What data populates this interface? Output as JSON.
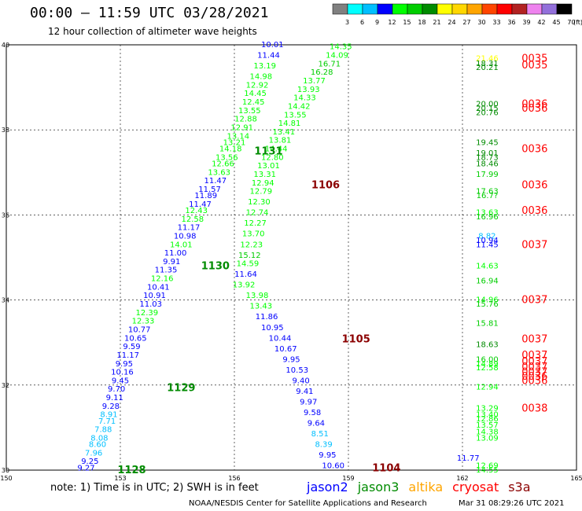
{
  "title": "00:00 – 11:59 UTC 03/28/2021",
  "subtitle": "12 hour collection of altimeter wave heights",
  "note": "note: 1) Time is in UTC; 2) SWH is in feet",
  "credit": "NOAA/NESDIS Center for Satellite Applications and Research",
  "timestamp": "Mar 31 08:29:26 UTC 2021",
  "color_scale": {
    "unit_label": "(ft)",
    "levels": [
      "3",
      "6",
      "9",
      "12",
      "15",
      "18",
      "21",
      "24",
      "27",
      "30",
      "33",
      "36",
      "39",
      "42",
      "45",
      "70"
    ],
    "colors": [
      "#808080",
      "#00ffff",
      "#00bfff",
      "#0000ff",
      "#00ff00",
      "#00cd00",
      "#008b00",
      "#ffff00",
      "#ffd700",
      "#ffa500",
      "#ff4500",
      "#ff0000",
      "#b22222",
      "#ee82ee",
      "#9370db",
      "#000000"
    ]
  },
  "satellite_legend": [
    {
      "name": "jason2",
      "color": "#0000ff"
    },
    {
      "name": "jason3",
      "color": "#008b00"
    },
    {
      "name": "altika",
      "color": "#ffa500"
    },
    {
      "name": "cryosat",
      "color": "#ff0000"
    },
    {
      "name": "s3a",
      "color": "#8b0000"
    }
  ],
  "chart_data": {
    "type": "scatter",
    "title": "00:00 – 11:59 UTC 03/28/2021",
    "subtitle": "12 hour collection of altimeter wave heights",
    "xlim": [
      150,
      165
    ],
    "ylim": [
      30,
      40
    ],
    "x_ticks": [
      "150",
      "153",
      "156",
      "159",
      "162",
      "165"
    ],
    "y_ticks": [
      "30",
      "32",
      "34",
      "36",
      "38",
      "40"
    ],
    "grid": true,
    "tracks": [
      {
        "track": 1128,
        "satellite": "jason3",
        "label_at": [
          153.3,
          30.0
        ],
        "points": [
          [
            152.1,
            30.05,
            "9.27"
          ],
          [
            152.2,
            30.2,
            "9.25"
          ],
          [
            152.3,
            30.4,
            "7.96"
          ],
          [
            152.4,
            30.6,
            "8.60"
          ],
          [
            152.45,
            30.75,
            "8.08"
          ],
          [
            152.55,
            30.95,
            "7.88"
          ],
          [
            152.65,
            31.15,
            "7.71"
          ],
          [
            152.7,
            31.3,
            "8.91"
          ],
          [
            152.75,
            31.5,
            "9.28"
          ],
          [
            152.85,
            31.7,
            "9.11"
          ],
          [
            152.9,
            31.9,
            "9.70"
          ]
        ]
      },
      {
        "track": 1129,
        "satellite": "jason3",
        "label_at": [
          154.6,
          31.93
        ],
        "points": [
          [
            153.0,
            32.1,
            "9.45"
          ],
          [
            153.05,
            32.3,
            "10.16"
          ],
          [
            153.1,
            32.5,
            "9.95"
          ],
          [
            153.2,
            32.7,
            "11.17"
          ],
          [
            153.3,
            32.9,
            "9.59"
          ],
          [
            153.4,
            33.1,
            "10.65"
          ],
          [
            153.5,
            33.3,
            "10.77"
          ],
          [
            153.6,
            33.5,
            "12.33"
          ],
          [
            153.7,
            33.7,
            "12.39"
          ],
          [
            153.8,
            33.9,
            "11.03"
          ],
          [
            153.9,
            34.1,
            "10.91"
          ],
          [
            154.0,
            34.3,
            "10.41"
          ],
          [
            154.1,
            34.5,
            "12.16"
          ],
          [
            154.2,
            34.7,
            "11.35"
          ],
          [
            154.35,
            34.9,
            "9.91"
          ],
          [
            154.45,
            35.1,
            "11.00"
          ],
          [
            154.6,
            35.3,
            "14.01"
          ],
          [
            154.7,
            35.5,
            "10.98"
          ],
          [
            154.8,
            35.7,
            "11.17"
          ],
          [
            154.9,
            35.9,
            "12.58"
          ],
          [
            155.0,
            36.1,
            "12.43"
          ]
        ]
      },
      {
        "track": 1130,
        "satellite": "jason3",
        "label_at": [
          155.5,
          34.8
        ],
        "points": [
          [
            155.1,
            36.25,
            "11.47"
          ],
          [
            155.25,
            36.45,
            "11.89"
          ],
          [
            155.35,
            36.6,
            "11.57"
          ],
          [
            155.5,
            36.8,
            "11.47"
          ],
          [
            155.6,
            37.0,
            "13.63"
          ],
          [
            155.7,
            37.2,
            "12.66"
          ],
          [
            155.8,
            37.35,
            "13.56"
          ],
          [
            155.9,
            37.55,
            "14.18"
          ],
          [
            156.0,
            37.7,
            "13.21"
          ],
          [
            156.1,
            37.85,
            "13.14"
          ],
          [
            156.2,
            38.05,
            "12.91"
          ],
          [
            156.3,
            38.25,
            "12.88"
          ],
          [
            156.4,
            38.45,
            "13.55"
          ],
          [
            156.5,
            38.65,
            "12.45"
          ],
          [
            156.55,
            38.85,
            "14.45"
          ],
          [
            156.6,
            39.05,
            "12.92"
          ],
          [
            156.7,
            39.25,
            "14.98"
          ],
          [
            156.8,
            39.5,
            "13.19"
          ],
          [
            156.9,
            39.75,
            "11.44"
          ],
          [
            157.0,
            40.0,
            "10.01"
          ]
        ]
      },
      {
        "track": 1131,
        "satellite": "jason3",
        "label_at": [
          156.9,
          37.5
        ],
        "points": [
          [
            158.8,
            39.95,
            "14.35"
          ],
          [
            158.7,
            39.75,
            "14.09"
          ],
          [
            158.5,
            39.55,
            "16.71"
          ],
          [
            158.3,
            39.35,
            "16.28"
          ],
          [
            158.1,
            39.15,
            "13.77"
          ],
          [
            157.95,
            38.95,
            "13.93"
          ],
          [
            157.85,
            38.75,
            "14.33"
          ],
          [
            157.7,
            38.55,
            "14.42"
          ],
          [
            157.6,
            38.35,
            "13.55"
          ],
          [
            157.45,
            38.15,
            "14.81"
          ],
          [
            157.3,
            37.95,
            "13.41"
          ],
          [
            157.2,
            37.75,
            "13.81"
          ],
          [
            157.1,
            37.55,
            "14.44"
          ],
          [
            157.0,
            37.35,
            "12.80"
          ],
          [
            156.9,
            37.15,
            "13.01"
          ],
          [
            156.8,
            36.95,
            "13.31"
          ],
          [
            156.75,
            36.75,
            "12.94"
          ],
          [
            156.7,
            36.55,
            "12.79"
          ],
          [
            156.65,
            36.3,
            "12.30"
          ],
          [
            156.6,
            36.05,
            "12.74"
          ],
          [
            156.55,
            35.8,
            "12.27"
          ],
          [
            156.5,
            35.55,
            "13.70"
          ],
          [
            156.45,
            35.3,
            "12.23"
          ],
          [
            156.4,
            35.05,
            "15.12"
          ],
          [
            156.35,
            34.85,
            "14.59"
          ],
          [
            156.3,
            34.6,
            "11.64"
          ],
          [
            156.25,
            34.35,
            "13.92"
          ]
        ]
      },
      {
        "track": 1105,
        "satellite": "s3a",
        "label_at": [
          159.2,
          33.08
        ],
        "points": [
          [
            156.6,
            34.1,
            "13.98"
          ],
          [
            156.7,
            33.85,
            "13.43"
          ],
          [
            156.85,
            33.6,
            "11.86"
          ],
          [
            157.0,
            33.35,
            "10.95"
          ],
          [
            157.2,
            33.1,
            "10.44"
          ],
          [
            157.35,
            32.85,
            "10.67"
          ],
          [
            157.5,
            32.6,
            "9.95"
          ],
          [
            157.65,
            32.35,
            "10.53"
          ],
          [
            157.75,
            32.1,
            "9.40"
          ],
          [
            157.85,
            31.85,
            "9.41"
          ],
          [
            157.95,
            31.6,
            "9.97"
          ],
          [
            158.05,
            31.35,
            "9.58"
          ],
          [
            158.15,
            31.1,
            "9.64"
          ],
          [
            158.25,
            30.85,
            "8.51"
          ],
          [
            158.35,
            30.6,
            "8.39"
          ],
          [
            158.45,
            30.35,
            "9.95"
          ],
          [
            158.6,
            30.1,
            "10.60"
          ]
        ]
      },
      {
        "track": 1106,
        "satellite": "s3a",
        "label_at": [
          158.4,
          36.7
        ],
        "points": []
      },
      {
        "track": 1104,
        "satellite": "s3a",
        "label_at": [
          160.0,
          30.05
        ],
        "points": [
          [
            162.15,
            30.28,
            "11.77"
          ]
        ]
      },
      {
        "track": 37,
        "satellite": "cryosat",
        "label_at": [
          163.3,
          32.0
        ],
        "points": [
          [
            162.65,
            39.68,
            "21.46"
          ],
          [
            162.65,
            39.56,
            "18.31"
          ],
          [
            162.65,
            39.46,
            "20.21"
          ],
          [
            162.65,
            38.6,
            "20.00"
          ],
          [
            162.65,
            38.5,
            "20.15"
          ],
          [
            162.65,
            38.4,
            "20.76"
          ],
          [
            162.65,
            37.7,
            "19.45"
          ],
          [
            162.65,
            37.45,
            "19.01"
          ],
          [
            162.65,
            37.35,
            "18.73"
          ],
          [
            162.65,
            37.2,
            "18.46"
          ],
          [
            162.65,
            36.95,
            "17.99"
          ],
          [
            162.65,
            36.55,
            "17.63"
          ],
          [
            162.65,
            36.45,
            "16.7?"
          ],
          [
            162.65,
            36.05,
            "13.63"
          ],
          [
            162.65,
            35.95,
            "16.96"
          ],
          [
            162.65,
            35.5,
            "8.82"
          ],
          [
            162.65,
            35.4,
            "10.94"
          ],
          [
            162.65,
            35.3,
            "11.45"
          ],
          [
            162.65,
            34.8,
            "14.63"
          ],
          [
            162.65,
            34.45,
            "16.94"
          ],
          [
            162.65,
            34.0,
            "14.96"
          ],
          [
            162.65,
            33.9,
            "15.76"
          ],
          [
            162.65,
            33.45,
            "15.81"
          ],
          [
            162.65,
            32.95,
            "18.63"
          ],
          [
            162.65,
            32.6,
            "16.00"
          ],
          [
            162.65,
            32.5,
            "14.89"
          ],
          [
            162.65,
            32.4,
            "12.58"
          ],
          [
            162.65,
            31.95,
            "12.94"
          ],
          [
            162.65,
            31.45,
            "13.29"
          ],
          [
            162.65,
            31.3,
            "13.40"
          ],
          [
            162.65,
            31.2,
            "12.86"
          ],
          [
            162.65,
            31.05,
            "13.57"
          ],
          [
            162.65,
            30.9,
            "14.38"
          ],
          [
            162.65,
            30.75,
            "13.09"
          ],
          [
            162.65,
            30.1,
            "12.69"
          ],
          [
            162.65,
            30.0,
            "14.55"
          ]
        ]
      }
    ],
    "cryosat_labels": [
      "0035",
      "0035",
      "0036",
      "0036",
      "0036",
      "0036",
      "0036",
      "0037",
      "0037",
      "0037",
      "0037",
      "0037",
      "0037",
      "0037",
      "0036",
      "0036",
      "0038"
    ]
  }
}
